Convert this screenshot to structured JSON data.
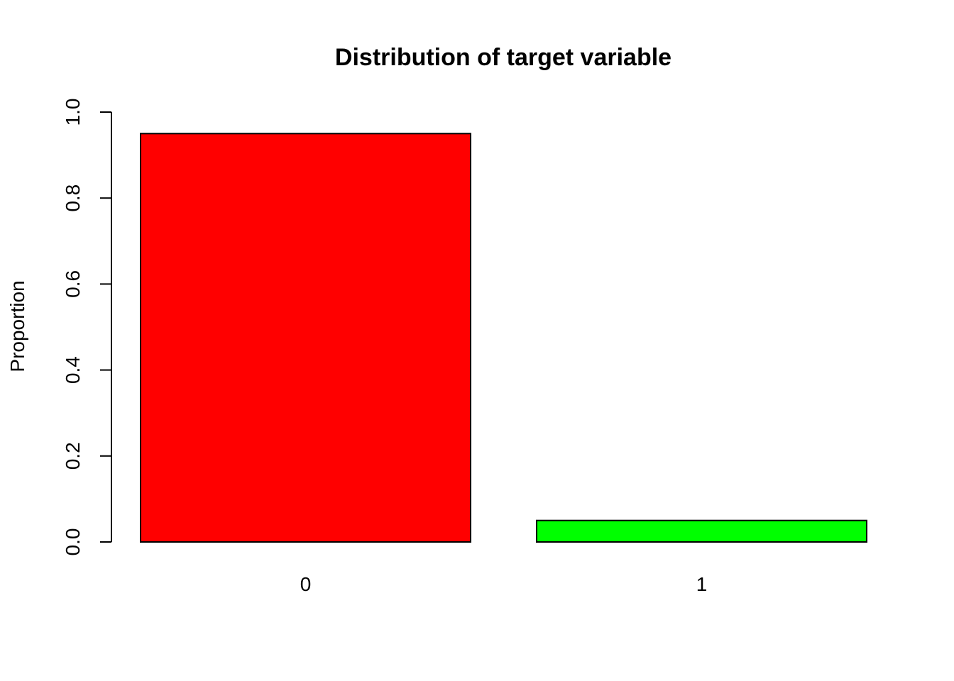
{
  "chart_data": {
    "type": "bar",
    "title": "Distribution of target variable",
    "xlabel": "",
    "ylabel": "Proportion",
    "categories": [
      "0",
      "1"
    ],
    "values": [
      0.95,
      0.05
    ],
    "colors": [
      "#ff0000",
      "#00ff00"
    ],
    "ylim": [
      0,
      1
    ],
    "yticks": [
      0.0,
      0.2,
      0.4,
      0.6,
      0.8,
      1.0
    ],
    "ytick_labels": [
      "0.0",
      "0.2",
      "0.4",
      "0.6",
      "0.8",
      "1.0"
    ],
    "grid": false,
    "legend": "none"
  }
}
